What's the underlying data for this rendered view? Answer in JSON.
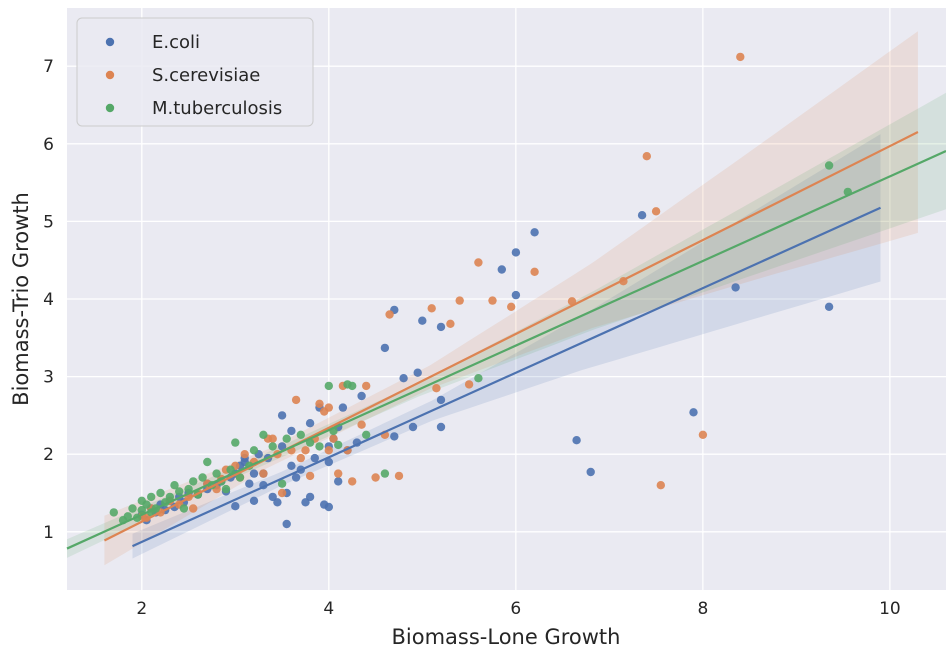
{
  "chart_data": {
    "type": "scatter",
    "title": "",
    "xlabel": "Biomass-Lone Growth",
    "ylabel": "Biomass-Trio Growth",
    "xlim": [
      1.2,
      10.6
    ],
    "ylim": [
      0.25,
      7.75
    ],
    "xticks": [
      2,
      4,
      6,
      8,
      10
    ],
    "yticks": [
      1,
      2,
      3,
      4,
      5,
      6,
      7
    ],
    "grid": true,
    "background": "#eaeaf2",
    "legend_position": "top-left",
    "series": [
      {
        "name": "E.coli",
        "color": "#4c72b0",
        "regression": {
          "x_range": [
            1.9,
            9.9
          ],
          "slope": 0.545,
          "intercept": -0.22,
          "ci_halfwidth": [
            0.16,
            0.09,
            0.13,
            0.35,
            0.65,
            0.95
          ]
        },
        "points": [
          [
            2.0,
            1.22
          ],
          [
            2.05,
            1.15
          ],
          [
            2.1,
            1.3
          ],
          [
            2.15,
            1.25
          ],
          [
            2.2,
            1.35
          ],
          [
            2.25,
            1.28
          ],
          [
            2.3,
            1.4
          ],
          [
            2.35,
            1.32
          ],
          [
            2.4,
            1.45
          ],
          [
            2.45,
            1.38
          ],
          [
            2.5,
            1.5
          ],
          [
            2.6,
            1.48
          ],
          [
            2.7,
            1.55
          ],
          [
            2.8,
            1.6
          ],
          [
            2.9,
            1.52
          ],
          [
            2.95,
            1.7
          ],
          [
            3.0,
            1.33
          ],
          [
            3.0,
            1.75
          ],
          [
            3.05,
            1.85
          ],
          [
            3.1,
            1.9
          ],
          [
            3.1,
            1.95
          ],
          [
            3.15,
            1.62
          ],
          [
            3.2,
            1.4
          ],
          [
            3.2,
            1.75
          ],
          [
            3.25,
            2.0
          ],
          [
            3.3,
            1.6
          ],
          [
            3.35,
            1.95
          ],
          [
            3.4,
            1.45
          ],
          [
            3.45,
            1.38
          ],
          [
            3.5,
            2.5
          ],
          [
            3.5,
            2.1
          ],
          [
            3.55,
            1.5
          ],
          [
            3.6,
            2.3
          ],
          [
            3.6,
            1.85
          ],
          [
            3.65,
            1.7
          ],
          [
            3.7,
            1.8
          ],
          [
            3.75,
            1.38
          ],
          [
            3.8,
            1.45
          ],
          [
            3.8,
            2.4
          ],
          [
            3.85,
            1.95
          ],
          [
            3.9,
            2.6
          ],
          [
            3.95,
            1.35
          ],
          [
            4.0,
            2.1
          ],
          [
            4.0,
            1.32
          ],
          [
            4.05,
            2.2
          ],
          [
            4.1,
            1.65
          ],
          [
            4.15,
            2.6
          ],
          [
            4.2,
            2.05
          ],
          [
            4.3,
            2.15
          ],
          [
            4.35,
            2.75
          ],
          [
            4.0,
            1.9
          ],
          [
            3.3,
            1.75
          ],
          [
            2.85,
            1.65
          ],
          [
            3.55,
            1.1
          ],
          [
            2.7,
            1.62
          ],
          [
            4.1,
            2.35
          ],
          [
            4.6,
            3.37
          ],
          [
            4.7,
            3.86
          ],
          [
            4.7,
            2.23
          ],
          [
            4.8,
            2.98
          ],
          [
            4.9,
            2.35
          ],
          [
            4.95,
            3.05
          ],
          [
            5.0,
            3.72
          ],
          [
            5.2,
            2.7
          ],
          [
            5.2,
            2.35
          ],
          [
            5.2,
            3.64
          ],
          [
            5.85,
            4.38
          ],
          [
            6.0,
            4.6
          ],
          [
            6.0,
            4.05
          ],
          [
            6.2,
            4.86
          ],
          [
            6.65,
            2.18
          ],
          [
            6.8,
            1.77
          ],
          [
            7.35,
            5.08
          ],
          [
            7.9,
            2.54
          ],
          [
            8.35,
            4.15
          ],
          [
            9.35,
            3.9
          ]
        ]
      },
      {
        "name": "S.cerevisiae",
        "color": "#dd8452",
        "regression": {
          "x_range": [
            1.6,
            10.3
          ],
          "slope": 0.605,
          "intercept": -0.08,
          "ci_halfwidth": [
            0.32,
            0.12,
            0.15,
            0.42,
            0.85,
            1.3
          ]
        },
        "points": [
          [
            2.0,
            1.2
          ],
          [
            2.05,
            1.18
          ],
          [
            2.1,
            1.3
          ],
          [
            2.2,
            1.25
          ],
          [
            2.3,
            1.4
          ],
          [
            2.4,
            1.35
          ],
          [
            2.5,
            1.45
          ],
          [
            2.55,
            1.3
          ],
          [
            2.6,
            1.5
          ],
          [
            2.7,
            1.62
          ],
          [
            2.8,
            1.55
          ],
          [
            2.85,
            1.68
          ],
          [
            2.9,
            1.8
          ],
          [
            3.0,
            1.85
          ],
          [
            3.05,
            1.7
          ],
          [
            3.1,
            2.0
          ],
          [
            3.2,
            1.9
          ],
          [
            3.3,
            1.75
          ],
          [
            3.35,
            2.2
          ],
          [
            3.4,
            2.2
          ],
          [
            3.45,
            2.0
          ],
          [
            3.5,
            1.5
          ],
          [
            3.6,
            2.05
          ],
          [
            3.65,
            2.7
          ],
          [
            3.7,
            1.95
          ],
          [
            3.75,
            2.05
          ],
          [
            3.8,
            1.72
          ],
          [
            3.85,
            2.2
          ],
          [
            3.9,
            2.65
          ],
          [
            3.95,
            2.55
          ],
          [
            4.0,
            2.6
          ],
          [
            4.0,
            2.05
          ],
          [
            4.05,
            2.2
          ],
          [
            4.1,
            1.75
          ],
          [
            4.15,
            2.88
          ],
          [
            4.2,
            2.05
          ],
          [
            4.25,
            1.65
          ],
          [
            4.35,
            2.38
          ],
          [
            4.4,
            2.88
          ],
          [
            4.5,
            1.7
          ],
          [
            4.6,
            2.25
          ],
          [
            4.65,
            3.8
          ],
          [
            4.75,
            1.72
          ],
          [
            5.1,
            3.88
          ],
          [
            5.15,
            2.85
          ],
          [
            5.3,
            3.68
          ],
          [
            5.4,
            3.98
          ],
          [
            5.5,
            2.9
          ],
          [
            5.6,
            4.47
          ],
          [
            5.75,
            3.98
          ],
          [
            5.95,
            3.9
          ],
          [
            6.2,
            4.35
          ],
          [
            6.6,
            3.97
          ],
          [
            7.15,
            4.23
          ],
          [
            7.4,
            5.84
          ],
          [
            7.5,
            5.13
          ],
          [
            7.55,
            1.6
          ],
          [
            8.0,
            2.25
          ],
          [
            8.4,
            7.12
          ]
        ]
      },
      {
        "name": "M.tuberculosis",
        "color": "#55a868",
        "regression": {
          "x_range": [
            1.2,
            10.6
          ],
          "slope": 0.545,
          "intercept": 0.13,
          "ci_halfwidth": [
            0.12,
            0.07,
            0.09,
            0.25,
            0.5,
            0.75
          ]
        },
        "points": [
          [
            1.7,
            1.25
          ],
          [
            1.8,
            1.15
          ],
          [
            1.85,
            1.2
          ],
          [
            1.9,
            1.3
          ],
          [
            1.95,
            1.18
          ],
          [
            2.0,
            1.28
          ],
          [
            2.0,
            1.4
          ],
          [
            2.05,
            1.35
          ],
          [
            2.1,
            1.25
          ],
          [
            2.1,
            1.45
          ],
          [
            2.15,
            1.3
          ],
          [
            2.2,
            1.5
          ],
          [
            2.25,
            1.38
          ],
          [
            2.3,
            1.45
          ],
          [
            2.35,
            1.6
          ],
          [
            2.4,
            1.52
          ],
          [
            2.45,
            1.3
          ],
          [
            2.5,
            1.55
          ],
          [
            2.55,
            1.65
          ],
          [
            2.6,
            1.48
          ],
          [
            2.65,
            1.7
          ],
          [
            2.7,
            1.9
          ],
          [
            2.75,
            1.6
          ],
          [
            2.8,
            1.75
          ],
          [
            2.85,
            1.65
          ],
          [
            2.9,
            1.55
          ],
          [
            2.95,
            1.8
          ],
          [
            3.0,
            2.15
          ],
          [
            3.05,
            1.7
          ],
          [
            3.15,
            1.85
          ],
          [
            3.2,
            2.05
          ],
          [
            3.3,
            2.25
          ],
          [
            3.4,
            2.1
          ],
          [
            3.5,
            1.62
          ],
          [
            3.55,
            2.2
          ],
          [
            3.7,
            2.25
          ],
          [
            3.8,
            2.15
          ],
          [
            3.9,
            2.1
          ],
          [
            4.0,
            2.88
          ],
          [
            4.05,
            2.3
          ],
          [
            4.1,
            2.12
          ],
          [
            4.2,
            2.9
          ],
          [
            4.25,
            2.88
          ],
          [
            4.4,
            2.25
          ],
          [
            4.6,
            1.75
          ],
          [
            5.6,
            2.98
          ],
          [
            9.35,
            5.72
          ],
          [
            9.55,
            5.38
          ]
        ]
      }
    ]
  }
}
